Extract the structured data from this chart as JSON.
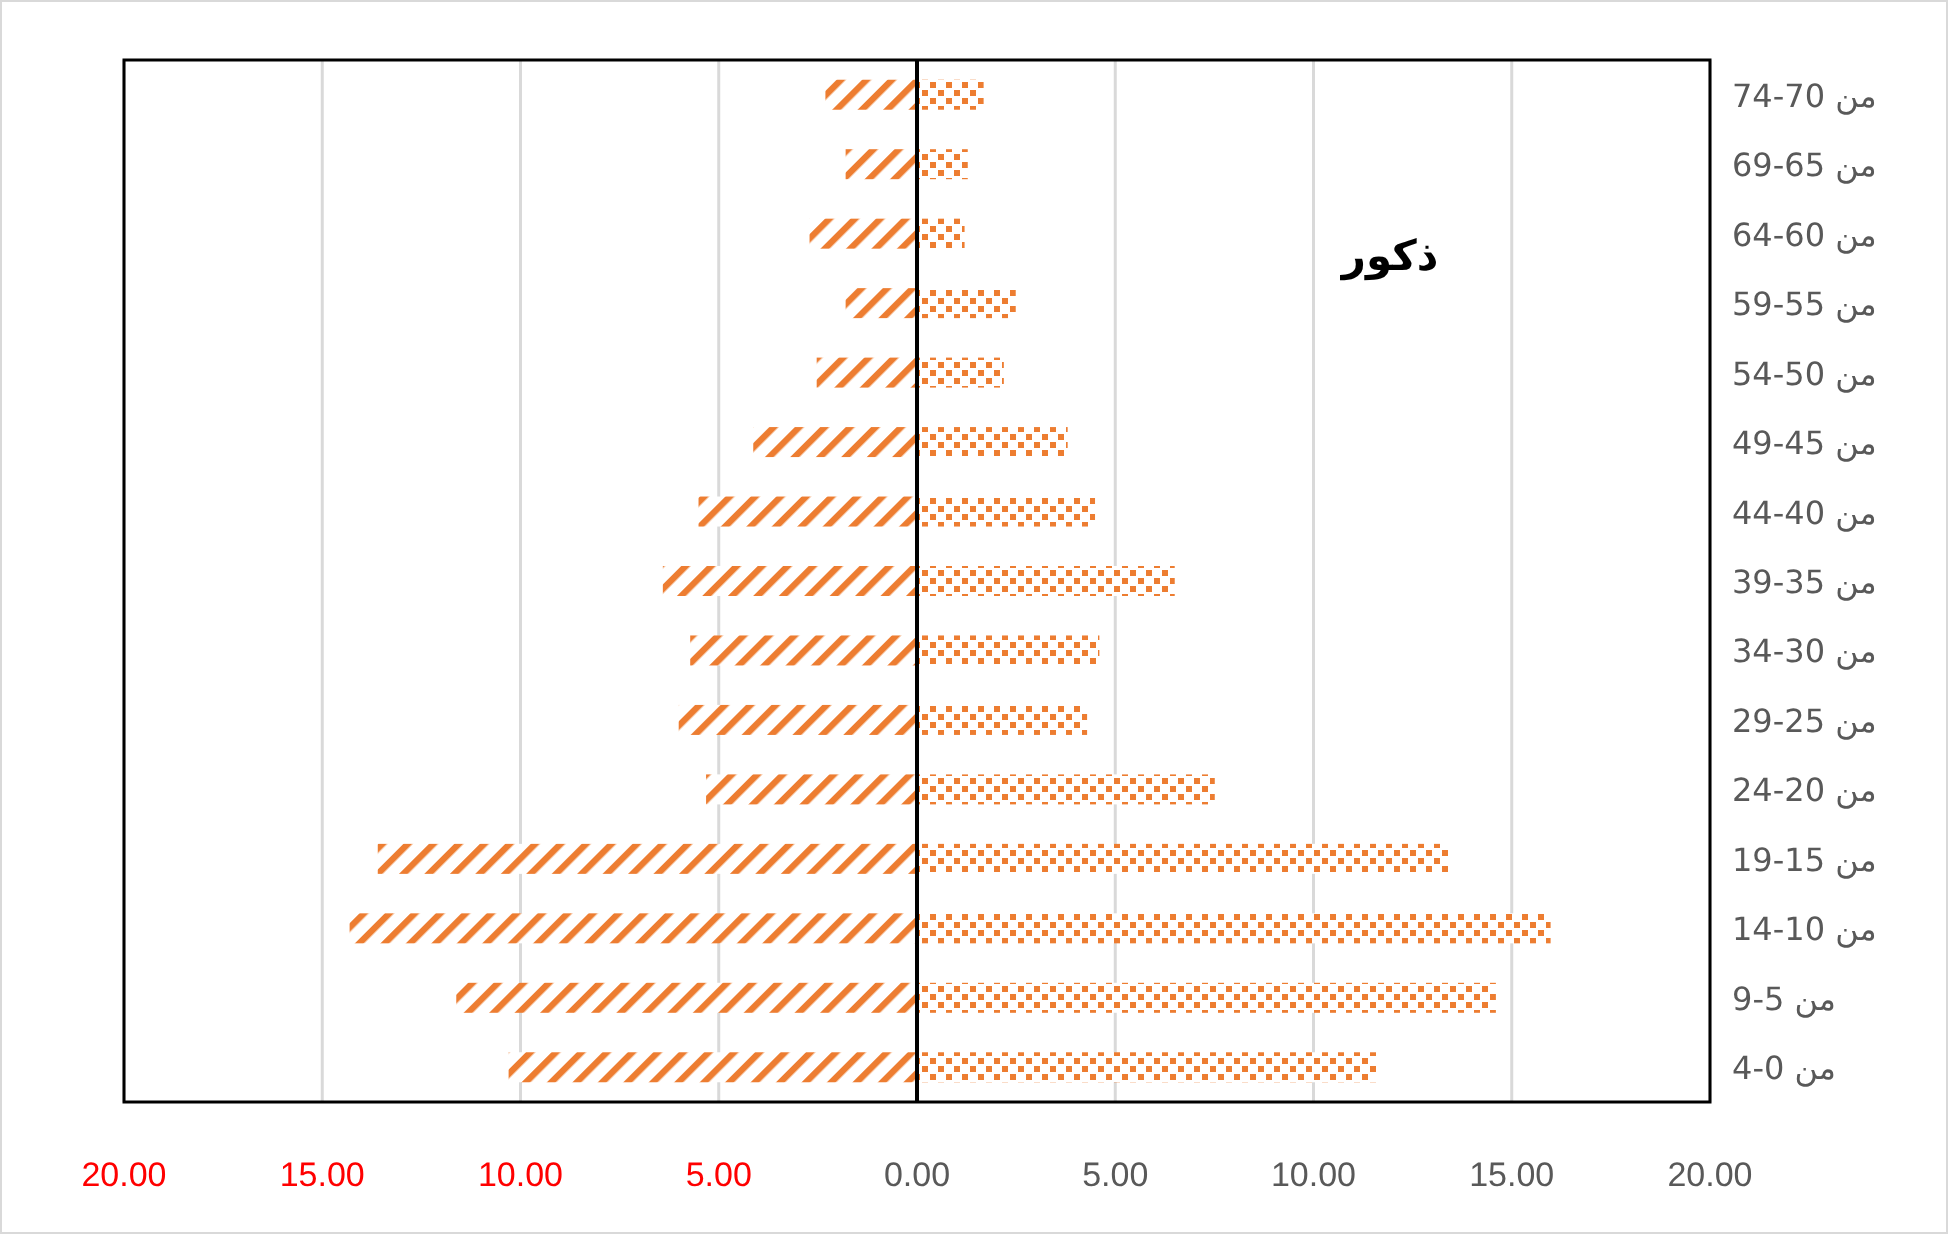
{
  "chart_data": {
    "type": "bar",
    "orientation": "horizontal",
    "categories": [
      "من 70-74",
      "من 65-69",
      "من 60-64",
      "من 55-59",
      "من 50-54",
      "من 45-49",
      "من 40-44",
      "من 35-39",
      "من 30-34",
      "من 25-29",
      "من 20-24",
      "من 15-19",
      "من 10-14",
      "من 5-9",
      "من 0-4"
    ],
    "stacked": true,
    "series": [
      {
        "color": "#ed7d31",
        "values": [
          -2.31,
          -1.8,
          -2.71,
          -1.8,
          -2.53,
          -4.13,
          -5.51,
          -6.41,
          -5.72,
          -6.01,
          -5.32,
          -13.6,
          -14.31,
          -11.62,
          -10.3
        ]
      },
      {
        "color": "#ed7d31",
        "values": [
          1.68,
          1.28,
          1.2,
          2.49,
          2.19,
          3.8,
          4.49,
          6.5,
          4.6,
          4.29,
          7.51,
          13.4,
          15.98,
          14.6,
          11.6
        ]
      }
    ],
    "xlim": [
      -20,
      20
    ],
    "xticks": [
      {
        "value": -20,
        "label": "20.00"
      },
      {
        "value": -15,
        "label": "15.00"
      },
      {
        "value": -10,
        "label": "10.00"
      },
      {
        "value": -5,
        "label": "5.00"
      },
      {
        "value": 0,
        "label": "0.00"
      },
      {
        "value": 5,
        "label": "5.00"
      },
      {
        "value": 10,
        "label": "10.00"
      },
      {
        "value": 15,
        "label": "15.00"
      },
      {
        "value": 20,
        "label": "20.00"
      }
    ],
    "grid": "x",
    "annotations": [
      "ذكور"
    ]
  }
}
